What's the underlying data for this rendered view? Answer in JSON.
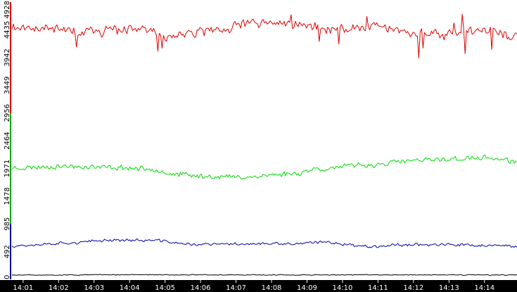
{
  "chart_data": {
    "type": "line",
    "title": "",
    "xlabel": "",
    "ylabel": "",
    "ylim": [
      0,
      4928
    ],
    "grid": false,
    "legend": "none",
    "y_ticks": [
      "0",
      "492",
      "985",
      "1478",
      "1971",
      "2464",
      "2956",
      "3449",
      "3942",
      "4435",
      "4928"
    ],
    "x_ticks": [
      "14:01",
      "14:02",
      "14:03",
      "14:04",
      "14:05",
      "14:06",
      "14:07",
      "14:08",
      "14:09",
      "14:10",
      "14:11",
      "14:12",
      "14:13",
      "14:14"
    ],
    "x_range": [
      "14:00:40",
      "14:14:55"
    ],
    "colors": {
      "background": "#ffffff",
      "axis_bar": "#000000"
    },
    "y_axis_segments": [
      {
        "from": 0,
        "to": 985,
        "color": "#0000aa"
      },
      {
        "from": 985,
        "to": 2956,
        "color": "#00aa00"
      },
      {
        "from": 2956,
        "to": 4928,
        "color": "#dd0000"
      }
    ],
    "series": [
      {
        "color": "#e00000",
        "anchor_x": [
          0,
          0.08,
          0.16,
          0.24,
          0.32,
          0.4,
          0.48,
          0.56,
          0.64,
          0.72,
          0.8,
          0.88,
          0.94,
          1.0
        ],
        "anchor_y": [
          4500,
          4470,
          4390,
          4450,
          4330,
          4400,
          4570,
          4530,
          4440,
          4500,
          4370,
          4400,
          4430,
          4330
        ],
        "noise": 90,
        "seed": 11
      },
      {
        "color": "#00dd00",
        "anchor_x": [
          0,
          0.1,
          0.2,
          0.28,
          0.32,
          0.38,
          0.46,
          0.56,
          0.6,
          0.7,
          0.8,
          0.88,
          0.94,
          1.0
        ],
        "anchor_y": [
          1980,
          2010,
          1990,
          1960,
          1870,
          1830,
          1820,
          1880,
          1960,
          2030,
          2110,
          2140,
          2160,
          2090
        ],
        "noise": 48,
        "seed": 23
      },
      {
        "color": "#0000aa",
        "anchor_x": [
          0,
          0.12,
          0.2,
          0.28,
          0.36,
          0.46,
          0.56,
          0.62,
          0.7,
          0.8,
          0.88,
          0.94,
          1.0
        ],
        "anchor_y": [
          600,
          650,
          700,
          690,
          620,
          630,
          630,
          660,
          590,
          620,
          610,
          600,
          580
        ],
        "noise": 28,
        "seed": 37
      },
      {
        "color": "#000000",
        "anchor_x": [
          0,
          0.25,
          0.5,
          0.75,
          1.0
        ],
        "anchor_y": [
          75,
          82,
          78,
          80,
          76
        ],
        "noise": 8,
        "seed": 51
      }
    ]
  }
}
